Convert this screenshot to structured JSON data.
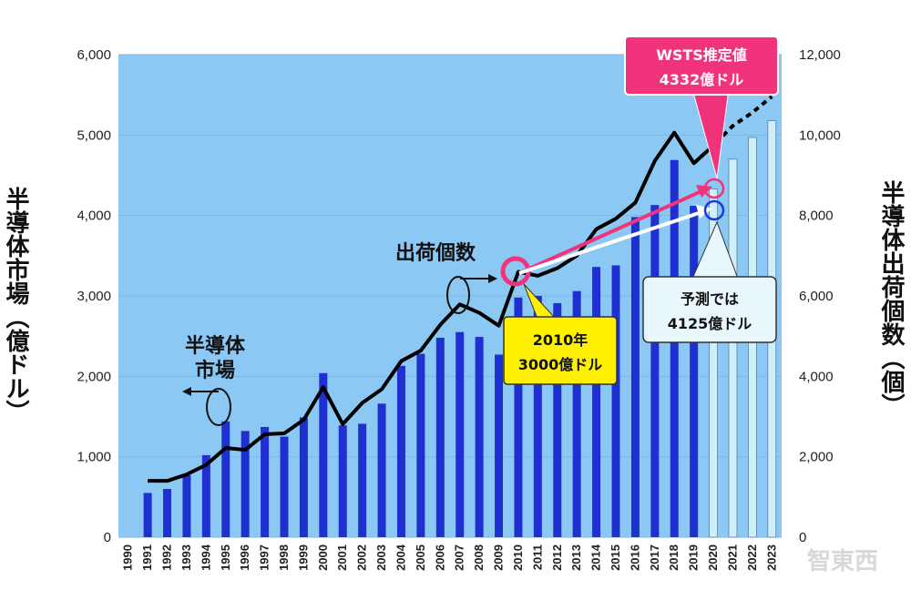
{
  "chart_data": {
    "type": "bar",
    "ylabel": "半導体市場（億ドル）",
    "y2label": "半導体出荷個数（個）",
    "ylim": [
      0,
      6000
    ],
    "y2lim": [
      0,
      12000
    ],
    "yticks": [
      "0",
      "1,000",
      "2,000",
      "3,000",
      "4,000",
      "5,000",
      "6,000"
    ],
    "y2ticks": [
      "0",
      "2,000",
      "4,000",
      "6,000",
      "8,000",
      "10,000",
      "12,000"
    ],
    "categories": [
      "1990",
      "1991",
      "1992",
      "1993",
      "1994",
      "1995",
      "1996",
      "1997",
      "1998",
      "1999",
      "2000",
      "2001",
      "2002",
      "2003",
      "2004",
      "2005",
      "2006",
      "2007",
      "2008",
      "2009",
      "2010",
      "2011",
      "2012",
      "2013",
      "2014",
      "2015",
      "2016",
      "2017",
      "2018",
      "2019",
      "2020",
      "2021",
      "2022",
      "2023"
    ],
    "series": [
      {
        "role": "market",
        "type": "bar",
        "color": "#1f2fd0",
        "forecast_color": "#cfeff8",
        "values": [
          null,
          550,
          600,
          770,
          1020,
          1440,
          1320,
          1370,
          1250,
          1490,
          2040,
          1390,
          1410,
          1660,
          2130,
          2280,
          2480,
          2550,
          2490,
          2270,
          2980,
          3000,
          2910,
          3060,
          3360,
          3380,
          3980,
          4130,
          4690,
          4120,
          4330,
          4700,
          4970,
          5180
        ],
        "forecast_from_index": 30
      },
      {
        "role": "shipments",
        "type": "line",
        "axis": "right",
        "color": "#000000",
        "values": [
          null,
          1400,
          1400,
          1560,
          1800,
          2220,
          2170,
          2560,
          2580,
          2920,
          3730,
          2810,
          3340,
          3680,
          4380,
          4640,
          5280,
          5790,
          5580,
          5260,
          6600,
          6500,
          6690,
          7000,
          7660,
          7920,
          8320,
          9360,
          10060,
          9300,
          9740,
          null,
          null,
          null
        ],
        "dashed_values": [
          null,
          null,
          null,
          null,
          null,
          null,
          null,
          null,
          null,
          null,
          null,
          null,
          null,
          null,
          null,
          null,
          null,
          null,
          null,
          null,
          null,
          null,
          null,
          null,
          null,
          null,
          null,
          null,
          null,
          9300,
          9740,
          10230,
          10560,
          10960
        ]
      }
    ],
    "annotations": {
      "market_label": [
        "半導体",
        "市場"
      ],
      "shipments_label": "出荷個数",
      "box_2010": [
        "2010年",
        "3000億ドル"
      ],
      "box_wsts": [
        "WSTS推定値",
        "4332億ドル"
      ],
      "box_forecast": [
        "予測では",
        "4125億ドル"
      ]
    },
    "colors": {
      "plot_bg": "#8cc8f4",
      "arrow_pink": "#f0337a",
      "arrow_white": "#ffffff",
      "box_yellow": "#fff000",
      "box_pink": "#f0337a",
      "box_light": "#e8f7fc",
      "circle_blue": "#1a3ad8"
    }
  },
  "watermark": "智東西"
}
